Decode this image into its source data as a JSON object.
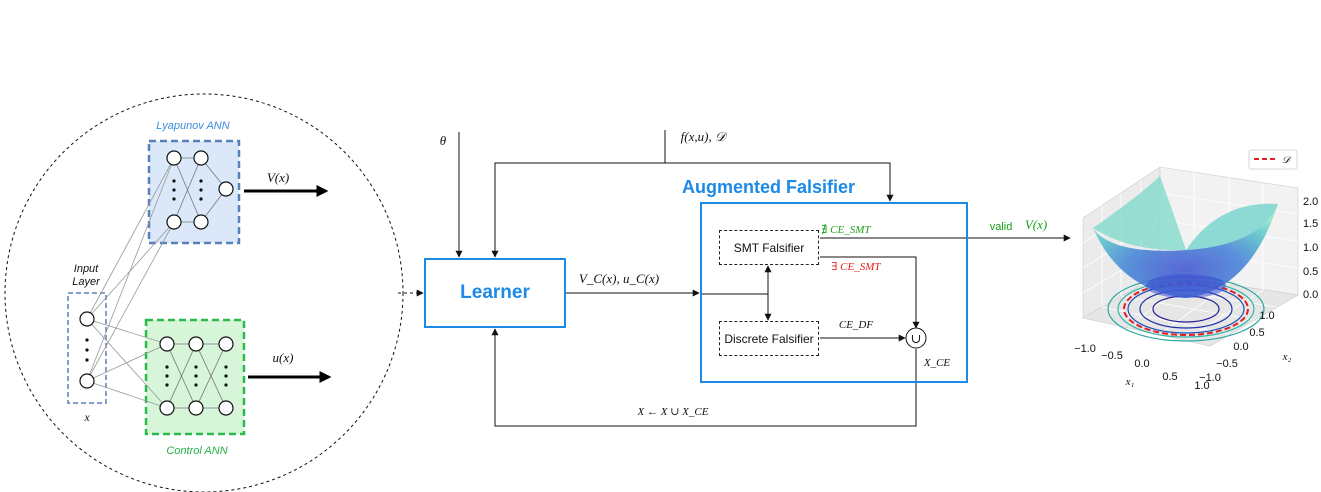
{
  "nn": {
    "lyapunov_label": "Lyapunov ANN",
    "control_label": "Control ANN",
    "input_layer_line1": "Input",
    "input_layer_line2": "Layer",
    "input_var": "x",
    "v_output": "V(x)",
    "u_output": "u(x)"
  },
  "loop": {
    "theta": "θ",
    "dynamics": "f(x,u), 𝒟",
    "learner": "Learner",
    "learner_output": "V_C(x), u_C(x)",
    "update_rule": "X ← X ∪ X_CE"
  },
  "falsifier": {
    "title": "Augmented Falsifier",
    "smt": "SMT Falsifier",
    "discrete": "Discrete Falsifier",
    "no_ce_smt": "∄ CE_SMT",
    "exists_ce_smt": "∃ CE_SMT",
    "ce_df": "CE_DF",
    "union": "∪",
    "x_ce": "X_CE"
  },
  "result": {
    "valid": "valid",
    "v_valid": "V(x)"
  },
  "plot3d": {
    "legend": "𝒟",
    "z_ticks": [
      "2.0",
      "1.5",
      "1.0",
      "0.5",
      "0.0"
    ],
    "x1_ticks": [
      "−1.0",
      "−0.5",
      "0.0",
      "0.5",
      "1.0"
    ],
    "x2_ticks": [
      "1.0",
      "0.5",
      "0.0",
      "−0.5",
      "−1.0"
    ],
    "x1_label": "x₁",
    "x2_label": "x₂"
  },
  "colors": {
    "blue": "#1c8ae6",
    "green": "#19a319",
    "red": "#e02020",
    "lyapunov_fill": "#dbe8f9",
    "control_fill": "#d6f5d9"
  }
}
